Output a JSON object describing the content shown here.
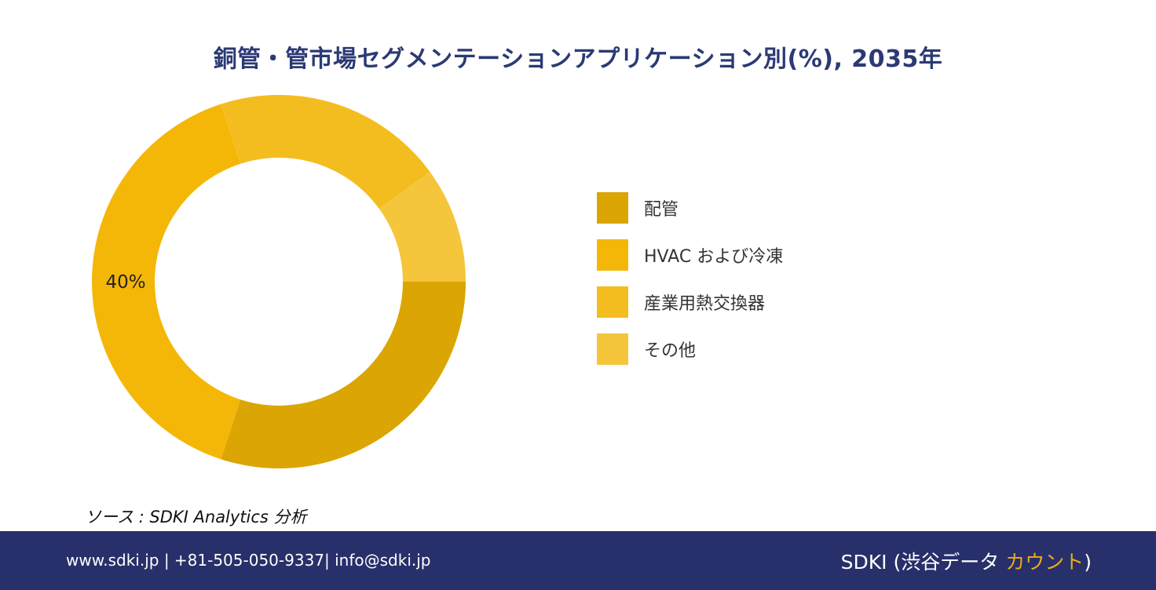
{
  "title": "銅管・管市場セグメンテーションアプリケーション別(%), 2035年",
  "chart_data": {
    "type": "pie",
    "donut": true,
    "categories": [
      "配管",
      "HVAC および冷凍",
      "産業用熱交換器",
      "その他"
    ],
    "values": [
      30,
      40,
      20,
      10
    ],
    "colors": [
      "#dba503",
      "#f4b707",
      "#f4bd1f",
      "#f5c53c"
    ],
    "data_labels": [
      {
        "category": "HVAC および冷凍",
        "text": "40%"
      }
    ],
    "legend_position": "right"
  },
  "source": "ソース : SDKI Analytics 分析",
  "footer": {
    "contact": "www.sdki.jp | +81-505-050-9337| info@sdki.jp",
    "brand_main": "SDKI (渋谷データ ",
    "brand_accent": "カウント",
    "brand_end": ")"
  }
}
